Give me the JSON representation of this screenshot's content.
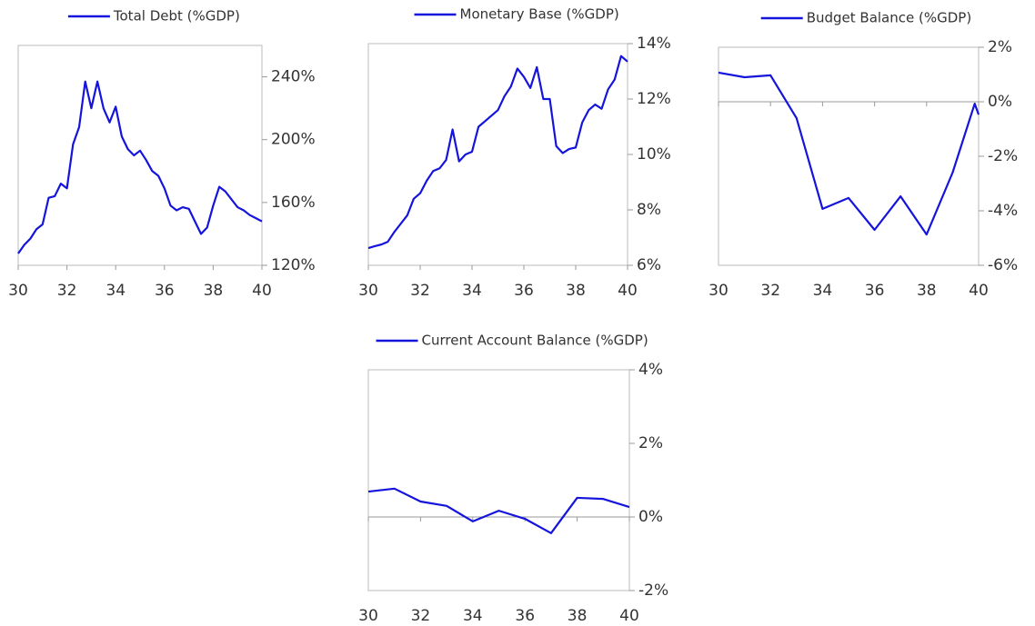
{
  "chart_data": [
    {
      "type": "line",
      "legend": "top",
      "x": [
        30,
        30.25,
        30.5,
        30.75,
        31,
        31.25,
        31.5,
        31.75,
        32,
        32.25,
        32.5,
        32.75,
        33,
        33.25,
        33.5,
        33.75,
        34,
        34.25,
        34.5,
        34.75,
        35,
        35.25,
        35.5,
        35.75,
        36,
        36.25,
        36.5,
        36.75,
        37,
        37.25,
        37.5,
        37.75,
        38,
        38.25,
        38.5,
        38.75,
        39,
        39.25,
        39.5,
        39.75,
        40
      ],
      "series": [
        {
          "name": "Total Debt (%GDP)",
          "color": "#1414dc",
          "values": [
            127.5,
            133,
            137,
            143,
            146,
            163,
            164,
            172,
            169,
            197,
            208,
            237,
            220,
            237,
            220,
            211,
            221,
            202,
            194,
            190,
            193,
            187,
            180,
            177,
            169,
            158,
            155,
            157,
            156,
            148,
            140,
            144,
            158,
            170,
            167,
            162,
            157,
            155,
            152,
            150,
            148
          ]
        }
      ],
      "xlim": [
        30,
        40
      ],
      "xticks": [
        30,
        32,
        34,
        36,
        38,
        40
      ],
      "ylim": [
        120,
        260
      ],
      "yticks": [
        {
          "value": 120,
          "label": "120%"
        },
        {
          "value": 160,
          "label": "160%"
        },
        {
          "value": 200,
          "label": "200%"
        },
        {
          "value": 240,
          "label": "240%"
        }
      ]
    },
    {
      "type": "line",
      "legend": "top",
      "x": [
        30,
        30.25,
        30.5,
        30.75,
        31,
        31.25,
        31.5,
        31.75,
        32,
        32.25,
        32.5,
        32.75,
        33,
        33.25,
        33.5,
        33.75,
        34,
        34.25,
        34.5,
        34.75,
        35,
        35.25,
        35.5,
        35.75,
        36,
        36.25,
        36.5,
        36.75,
        37,
        37.25,
        37.5,
        37.75,
        38,
        38.25,
        38.5,
        38.75,
        39,
        39.25,
        39.5,
        39.75,
        40
      ],
      "series": [
        {
          "name": "Monetary Base (%GDP)",
          "color": "#1414dc",
          "values": [
            6.62,
            6.69,
            6.75,
            6.85,
            7.2,
            7.5,
            7.8,
            8.4,
            8.6,
            9.05,
            9.4,
            9.5,
            9.8,
            10.9,
            9.75,
            10,
            10.1,
            11,
            11.2,
            11.4,
            11.6,
            12.1,
            12.45,
            13.1,
            12.8,
            12.4,
            13.15,
            12,
            12,
            10.3,
            10.05,
            10.2,
            10.25,
            11.15,
            11.6,
            11.8,
            11.65,
            12.35,
            12.7,
            13.55,
            13.35
          ]
        }
      ],
      "xlim": [
        30,
        40
      ],
      "xticks": [
        30,
        32,
        34,
        36,
        38,
        40
      ],
      "ylim": [
        6,
        14
      ],
      "yticks": [
        {
          "value": 6,
          "label": "6%"
        },
        {
          "value": 8,
          "label": "8%"
        },
        {
          "value": 10,
          "label": "10%"
        },
        {
          "value": 12,
          "label": "12%"
        },
        {
          "value": 14,
          "label": "14%"
        }
      ]
    },
    {
      "type": "line",
      "legend": "top",
      "x": [
        30,
        31,
        32,
        33,
        34,
        35,
        36,
        37,
        38,
        39,
        39.85,
        40
      ],
      "series": [
        {
          "name": "Budget Balance (%GDP)",
          "color": "#1414dc",
          "values": [
            1.07,
            0.9,
            0.97,
            -0.6,
            -3.93,
            -3.53,
            -4.7,
            -3.47,
            -4.87,
            -2.6,
            -0.07,
            -0.47
          ]
        }
      ],
      "xlim": [
        30,
        40
      ],
      "xticks": [
        30,
        32,
        34,
        36,
        38,
        40
      ],
      "ylim": [
        -6,
        2
      ],
      "yticks": [
        {
          "value": -6,
          "label": "-6%"
        },
        {
          "value": -4,
          "label": "-4%"
        },
        {
          "value": -2,
          "label": "-2%"
        },
        {
          "value": 0,
          "label": "0%"
        },
        {
          "value": 2,
          "label": "2%"
        }
      ]
    },
    {
      "type": "line",
      "legend": "top",
      "x": [
        30,
        31,
        32,
        33,
        34,
        35,
        36,
        37,
        38,
        39,
        40
      ],
      "series": [
        {
          "name": "Current Account Balance (%GDP)",
          "color": "#1414dc",
          "values": [
            0.69,
            0.77,
            0.42,
            0.3,
            -0.12,
            0.17,
            -0.05,
            -0.44,
            0.52,
            0.49,
            0.27
          ]
        }
      ],
      "xlim": [
        30,
        40
      ],
      "xticks": [
        30,
        32,
        34,
        36,
        38,
        40
      ],
      "ylim": [
        -2,
        4
      ],
      "yticks": [
        {
          "value": -2,
          "label": "-2%"
        },
        {
          "value": 0,
          "label": "0%"
        },
        {
          "value": 2,
          "label": "2%"
        },
        {
          "value": 4,
          "label": "4%"
        }
      ]
    }
  ]
}
